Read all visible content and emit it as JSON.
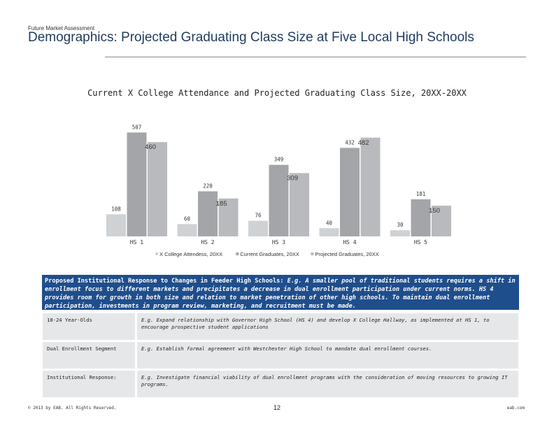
{
  "header": {
    "eyebrow": "Future Market Assessment",
    "title": "Demographics: Projected Graduating Class Size at Five Local High Schools"
  },
  "colors": {
    "attendees": "#cfd2d4",
    "current": "#a3a5a8",
    "projected": "#b8babd",
    "proposal_bg": "#1f4e8c",
    "cell_bg": "#e6e7e9"
  },
  "chart_data": {
    "type": "bar",
    "title": "Current X College Attendance and Projected Graduating Class Size, 20XX-20XX",
    "categories": [
      "HS 1",
      "HS 2",
      "HS 3",
      "HS 4",
      "HS 5"
    ],
    "series": [
      {
        "name": "X College Attendess, 20XX",
        "values": [
          108,
          60,
          76,
          40,
          30
        ]
      },
      {
        "name": "Current Graduates, 20XX",
        "values": [
          507,
          220,
          349,
          432,
          181
        ]
      },
      {
        "name": "Projected Graduates, 20XX",
        "values": [
          460,
          185,
          309,
          482,
          150
        ]
      }
    ],
    "legend": "bottom",
    "grid": false
  },
  "proposal": {
    "lead": "Proposed Institutional Response to Changes in Feeder High Schools:",
    "body": "E.g. A smaller pool of traditional students requires a shift in enrollment focus to different markets and precipitates a decrease in dual enrollment participation under current norms. HS 4 provides room for growth in both size and relation to market penetration of other high schools. To maintain dual enrollment participation, investments in program review, marketing, and recruitment must be made."
  },
  "responses": [
    {
      "label": "18-24 Year-Olds",
      "text": "E.g. Expand relationship with Governor High School (HS 4) and develop X College Hallway, as implemented at HS 1, to encourage prospective student applications"
    },
    {
      "label": "Dual Enrollment Segment",
      "text": "E.g. Establish formal agreement with Westchester High School to mandate dual enrollment courses."
    },
    {
      "label": "Institutional Response:",
      "text": "E.g. Investigate financial viability of dual enrollment programs with the consideration of moving resources to growing IT programs."
    }
  ],
  "footer": {
    "copyright": "© 2013 by EAB. All Rights Reserved.",
    "page": "12",
    "site": "eab.com"
  }
}
